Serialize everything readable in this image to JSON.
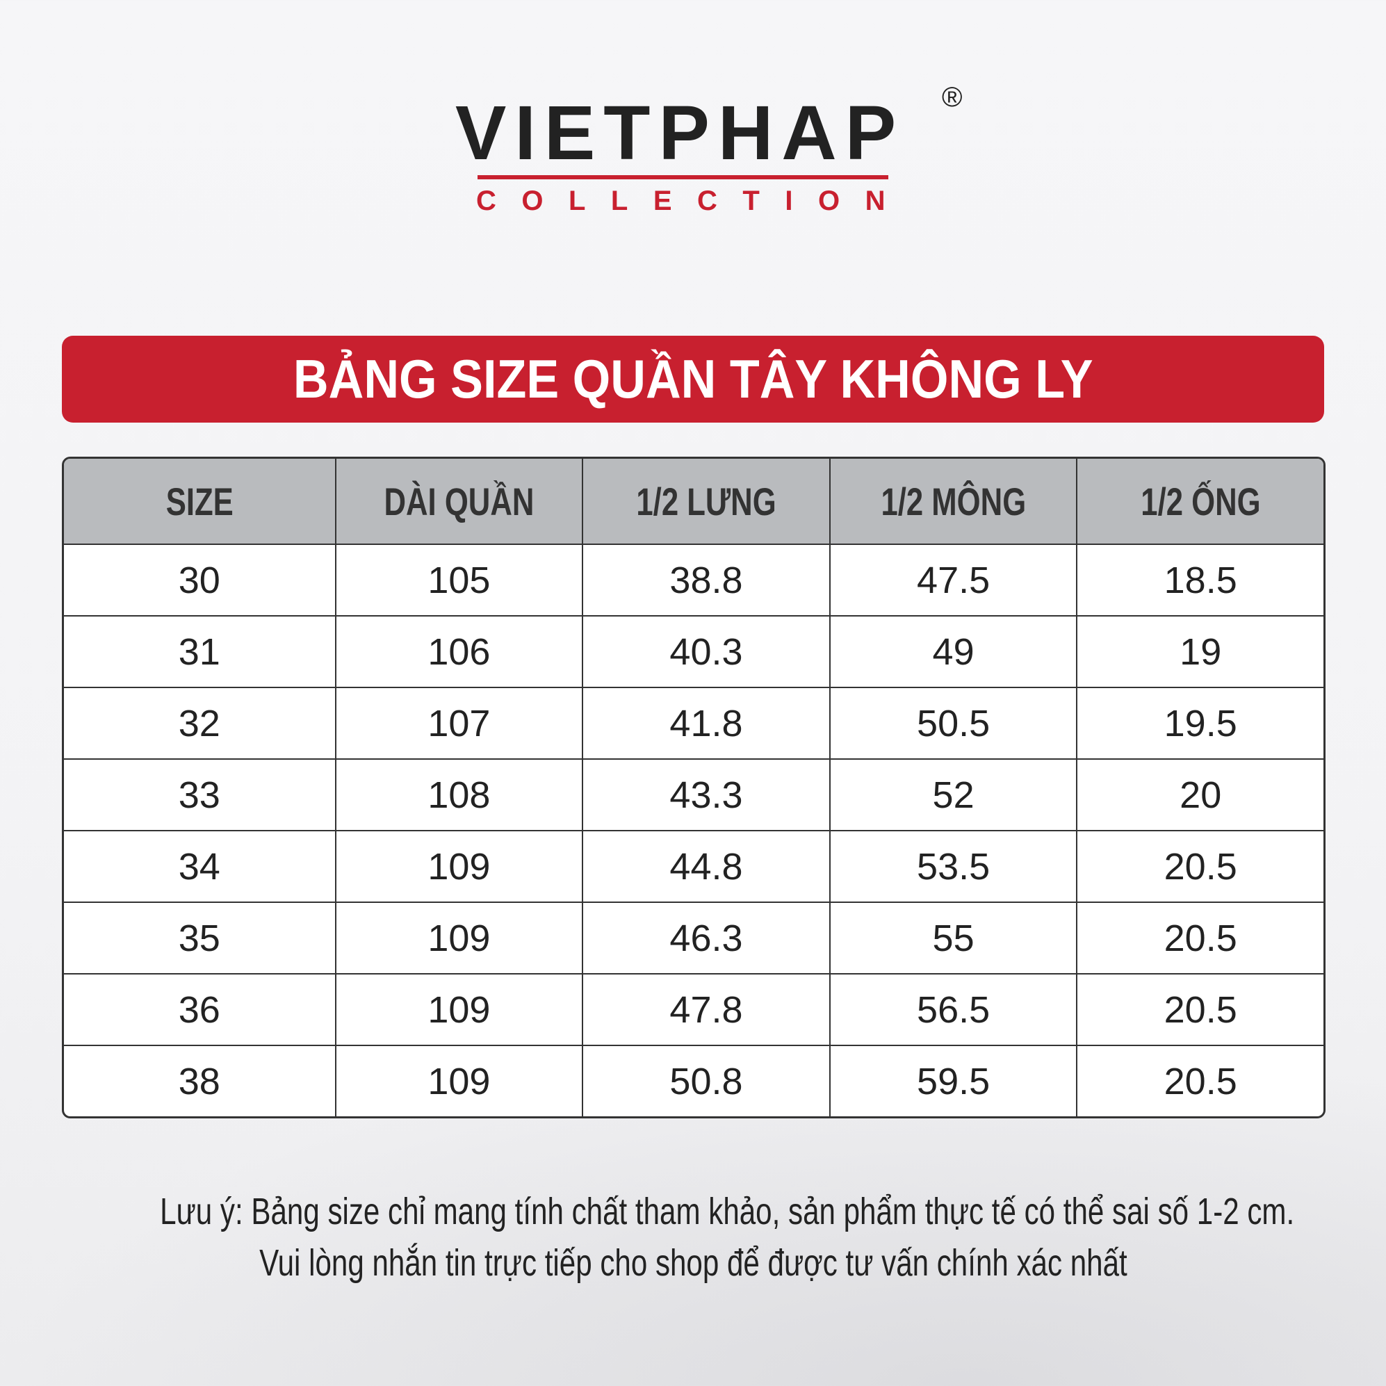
{
  "logo": {
    "word": "VIETPHAP",
    "registered": "®",
    "sub": "COLLECTION",
    "brand_color": "#c8202f"
  },
  "title": "BẢNG SIZE QUẦN TÂY KHÔNG LY",
  "table": {
    "headers": [
      "SIZE",
      "DÀI QUẦN",
      "1/2 LƯNG",
      "1/2 MÔNG",
      "1/2 ỐNG"
    ],
    "rows": [
      [
        "30",
        "105",
        "38.8",
        "47.5",
        "18.5"
      ],
      [
        "31",
        "106",
        "40.3",
        "49",
        "19"
      ],
      [
        "32",
        "107",
        "41.8",
        "50.5",
        "19.5"
      ],
      [
        "33",
        "108",
        "43.3",
        "52",
        "20"
      ],
      [
        "34",
        "109",
        "44.8",
        "53.5",
        "20.5"
      ],
      [
        "35",
        "109",
        "46.3",
        "55",
        "20.5"
      ],
      [
        "36",
        "109",
        "47.8",
        "56.5",
        "20.5"
      ],
      [
        "38",
        "109",
        "50.8",
        "59.5",
        "20.5"
      ]
    ]
  },
  "note": {
    "line1": "Lưu ý: Bảng size chỉ mang tính chất tham khảo, sản phẩm thực tế có thể sai số 1-2 cm.",
    "line2": "Vui lòng nhắn tin trực tiếp cho shop để được tư vấn chính xác nhất"
  }
}
